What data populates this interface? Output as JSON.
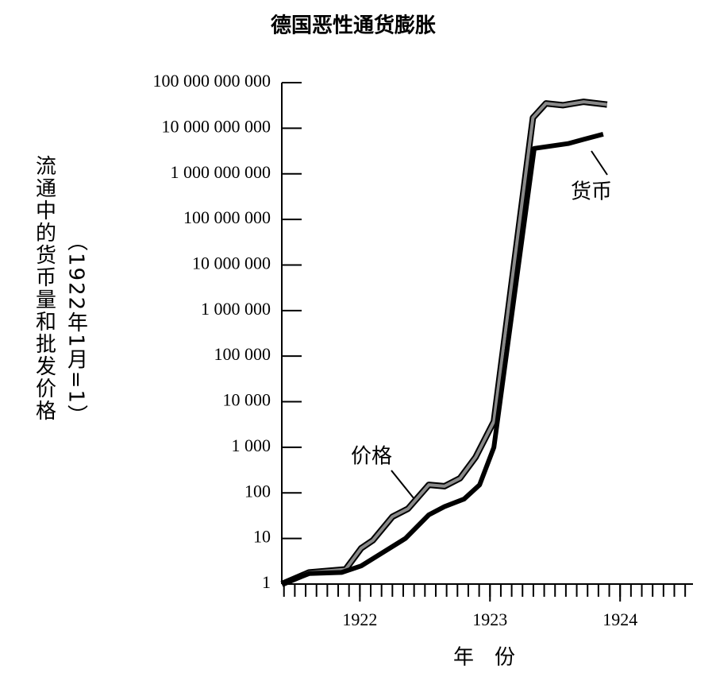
{
  "chart_data": {
    "type": "line",
    "title": "德国恶性通货膨胀",
    "y_label": "流通中的货币量和批发价格",
    "y_label_note": "（1922年1月=1）",
    "x_label": "年　份",
    "log_scale_y": true,
    "ylim": [
      1,
      100000000000
    ],
    "yticks": [
      {
        "value": 1,
        "label": "1"
      },
      {
        "value": 10,
        "label": "10"
      },
      {
        "value": 100,
        "label": "100"
      },
      {
        "value": 1000,
        "label": "1 000"
      },
      {
        "value": 10000,
        "label": "10 000"
      },
      {
        "value": 100000,
        "label": "100 000"
      },
      {
        "value": 1000000,
        "label": "1 000 000"
      },
      {
        "value": 10000000,
        "label": "10 000 000"
      },
      {
        "value": 100000000,
        "label": "100 000 000"
      },
      {
        "value": 1000000000,
        "label": "1 000 000 000"
      },
      {
        "value": 10000000000,
        "label": "10 000 000 000"
      },
      {
        "value": 100000000000,
        "label": "100 000 000 000"
      }
    ],
    "xlim": [
      1921.4,
      1924.56
    ],
    "xticks": [
      1922,
      1923,
      1924
    ],
    "series": [
      {
        "name": "价格",
        "color": "#8a8a8a",
        "x": [
          1921.4,
          1921.61,
          1921.89,
          1922.01,
          1922.1,
          1922.25,
          1922.37,
          1922.53,
          1922.65,
          1922.77,
          1922.89,
          1923.03,
          1923.33,
          1923.43,
          1923.56,
          1923.72,
          1923.9
        ],
        "values": [
          1,
          1.8,
          2.1,
          6.1,
          9.1,
          30,
          45,
          150,
          140,
          210,
          610,
          3700,
          17000000000,
          35000000000,
          32000000000,
          38000000000,
          33000000000
        ]
      },
      {
        "name": "货币",
        "color": "#000000",
        "x": [
          1921.4,
          1921.61,
          1921.86,
          1922.01,
          1922.16,
          1922.35,
          1922.53,
          1922.65,
          1922.8,
          1922.92,
          1923.03,
          1923.34,
          1923.6,
          1923.72,
          1923.87
        ],
        "values": [
          1,
          1.7,
          1.8,
          2.5,
          4.6,
          10,
          33,
          50,
          73,
          150,
          1000,
          3600000000,
          4600000000,
          5700000000,
          7400000000
        ]
      }
    ]
  }
}
